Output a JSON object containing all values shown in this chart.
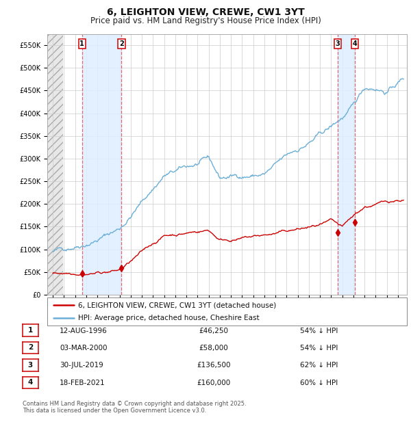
{
  "title": "6, LEIGHTON VIEW, CREWE, CW1 3YT",
  "subtitle": "Price paid vs. HM Land Registry's House Price Index (HPI)",
  "title_fontsize": 10,
  "subtitle_fontsize": 8.5,
  "background_color": "#ffffff",
  "plot_bg_color": "#ffffff",
  "grid_color": "#cccccc",
  "ylim": [
    0,
    575000
  ],
  "yticks": [
    0,
    50000,
    100000,
    150000,
    200000,
    250000,
    300000,
    350000,
    400000,
    450000,
    500000,
    550000
  ],
  "ytick_labels": [
    "£0",
    "£50K",
    "£100K",
    "£150K",
    "£200K",
    "£250K",
    "£300K",
    "£350K",
    "£400K",
    "£450K",
    "£500K",
    "£550K"
  ],
  "hpi_color": "#6baed6",
  "price_color": "#cc0000",
  "marker_color": "#cc0000",
  "dashed_line_color": "#e05050",
  "shade_color": "#ddeeff",
  "transactions": [
    {
      "id": 1,
      "date_label": "12-AUG-1996",
      "year": 1996.62,
      "price": 46250,
      "pct": "54%",
      "label": "1"
    },
    {
      "id": 2,
      "date_label": "03-MAR-2000",
      "year": 2000.17,
      "price": 58000,
      "pct": "54%",
      "label": "2"
    },
    {
      "id": 3,
      "date_label": "30-JUL-2019",
      "year": 2019.58,
      "price": 136500,
      "pct": "62%",
      "label": "3"
    },
    {
      "id": 4,
      "date_label": "18-FEB-2021",
      "year": 2021.13,
      "price": 160000,
      "pct": "60%",
      "label": "4"
    }
  ],
  "legend_entries": [
    "6, LEIGHTON VIEW, CREWE, CW1 3YT (detached house)",
    "HPI: Average price, detached house, Cheshire East"
  ],
  "footer_lines": [
    "Contains HM Land Registry data © Crown copyright and database right 2025.",
    "This data is licensed under the Open Government Licence v3.0."
  ],
  "table_rows": [
    [
      "1",
      "12-AUG-1996",
      "£46,250",
      "54% ↓ HPI"
    ],
    [
      "2",
      "03-MAR-2000",
      "£58,000",
      "54% ↓ HPI"
    ],
    [
      "3",
      "30-JUL-2019",
      "£136,500",
      "62% ↓ HPI"
    ],
    [
      "4",
      "18-FEB-2021",
      "£160,000",
      "60% ↓ HPI"
    ]
  ]
}
